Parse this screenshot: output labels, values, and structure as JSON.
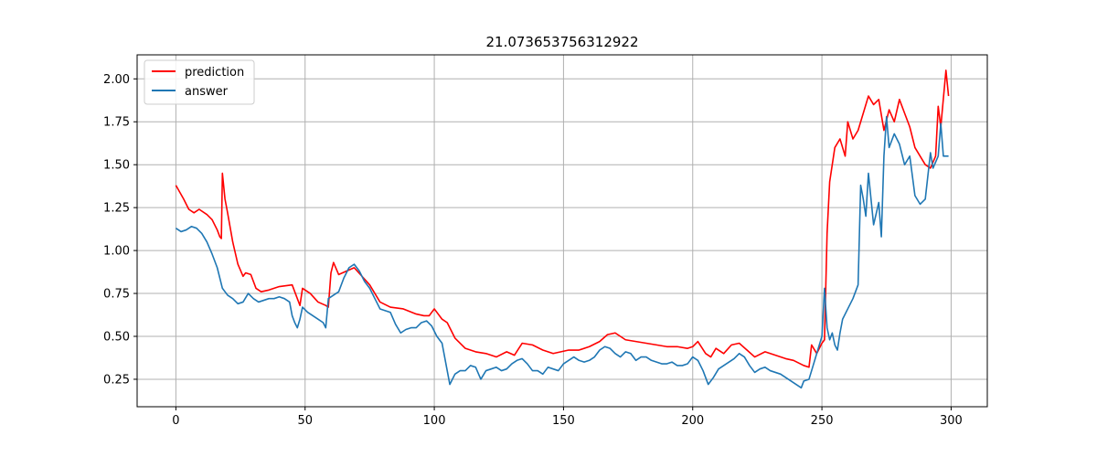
{
  "chart_data": {
    "type": "line",
    "title": "21.073653756312922",
    "xlabel": "",
    "ylabel": "",
    "xlim": [
      -15,
      314
    ],
    "ylim": [
      0.09,
      2.14
    ],
    "xticks": [
      0,
      50,
      100,
      150,
      200,
      250,
      300
    ],
    "yticks": [
      0.25,
      0.5,
      0.75,
      1.0,
      1.25,
      1.5,
      1.75,
      2.0
    ],
    "xtick_labels": [
      "0",
      "50",
      "100",
      "150",
      "200",
      "250",
      "300"
    ],
    "ytick_labels": [
      "0.25",
      "0.50",
      "0.75",
      "1.00",
      "1.25",
      "1.50",
      "1.75",
      "2.00"
    ],
    "grid": true,
    "legend_position": "top-left",
    "series": [
      {
        "name": "prediction",
        "color": "#ff0000",
        "points": [
          [
            0,
            1.38
          ],
          [
            3,
            1.3
          ],
          [
            5,
            1.24
          ],
          [
            7,
            1.22
          ],
          [
            9,
            1.24
          ],
          [
            12,
            1.21
          ],
          [
            14,
            1.18
          ],
          [
            16,
            1.12
          ],
          [
            17,
            1.08
          ],
          [
            17.6,
            1.07
          ],
          [
            18,
            1.45
          ],
          [
            19,
            1.3
          ],
          [
            20,
            1.22
          ],
          [
            22,
            1.05
          ],
          [
            24,
            0.92
          ],
          [
            26,
            0.85
          ],
          [
            27,
            0.87
          ],
          [
            29,
            0.86
          ],
          [
            31,
            0.78
          ],
          [
            33,
            0.76
          ],
          [
            36,
            0.77
          ],
          [
            40,
            0.79
          ],
          [
            45,
            0.8
          ],
          [
            47,
            0.72
          ],
          [
            48,
            0.68
          ],
          [
            49,
            0.78
          ],
          [
            52,
            0.75
          ],
          [
            55,
            0.7
          ],
          [
            58,
            0.68
          ],
          [
            59,
            0.67
          ],
          [
            60,
            0.87
          ],
          [
            61,
            0.93
          ],
          [
            63,
            0.86
          ],
          [
            66,
            0.88
          ],
          [
            69,
            0.9
          ],
          [
            72,
            0.85
          ],
          [
            75,
            0.8
          ],
          [
            79,
            0.7
          ],
          [
            83,
            0.67
          ],
          [
            88,
            0.66
          ],
          [
            93,
            0.63
          ],
          [
            96,
            0.62
          ],
          [
            98,
            0.62
          ],
          [
            100,
            0.66
          ],
          [
            103,
            0.6
          ],
          [
            105,
            0.58
          ],
          [
            108,
            0.49
          ],
          [
            112,
            0.43
          ],
          [
            116,
            0.41
          ],
          [
            120,
            0.4
          ],
          [
            124,
            0.38
          ],
          [
            128,
            0.41
          ],
          [
            131,
            0.39
          ],
          [
            134,
            0.46
          ],
          [
            138,
            0.45
          ],
          [
            142,
            0.42
          ],
          [
            146,
            0.4
          ],
          [
            149,
            0.41
          ],
          [
            152,
            0.42
          ],
          [
            156,
            0.42
          ],
          [
            160,
            0.44
          ],
          [
            164,
            0.47
          ],
          [
            167,
            0.51
          ],
          [
            170,
            0.52
          ],
          [
            174,
            0.48
          ],
          [
            178,
            0.47
          ],
          [
            182,
            0.46
          ],
          [
            186,
            0.45
          ],
          [
            190,
            0.44
          ],
          [
            194,
            0.44
          ],
          [
            198,
            0.43
          ],
          [
            200,
            0.44
          ],
          [
            202,
            0.47
          ],
          [
            205,
            0.4
          ],
          [
            207,
            0.38
          ],
          [
            209,
            0.43
          ],
          [
            212,
            0.4
          ],
          [
            215,
            0.45
          ],
          [
            218,
            0.46
          ],
          [
            221,
            0.42
          ],
          [
            224,
            0.38
          ],
          [
            228,
            0.41
          ],
          [
            232,
            0.39
          ],
          [
            236,
            0.37
          ],
          [
            239,
            0.36
          ],
          [
            243,
            0.33
          ],
          [
            245,
            0.32
          ],
          [
            246,
            0.45
          ],
          [
            248,
            0.4
          ],
          [
            250,
            0.46
          ],
          [
            251,
            0.48
          ],
          [
            252,
            1.1
          ],
          [
            253,
            1.4
          ],
          [
            255,
            1.6
          ],
          [
            257,
            1.65
          ],
          [
            259,
            1.55
          ],
          [
            260,
            1.75
          ],
          [
            262,
            1.65
          ],
          [
            264,
            1.7
          ],
          [
            266,
            1.8
          ],
          [
            268,
            1.9
          ],
          [
            270,
            1.85
          ],
          [
            272,
            1.88
          ],
          [
            274,
            1.7
          ],
          [
            276,
            1.82
          ],
          [
            278,
            1.75
          ],
          [
            280,
            1.88
          ],
          [
            282,
            1.8
          ],
          [
            284,
            1.72
          ],
          [
            286,
            1.6
          ],
          [
            288,
            1.55
          ],
          [
            290,
            1.5
          ],
          [
            292,
            1.48
          ],
          [
            294,
            1.55
          ],
          [
            295,
            1.84
          ],
          [
            296,
            1.72
          ],
          [
            298,
            2.05
          ],
          [
            299,
            1.9
          ]
        ]
      },
      {
        "name": "answer",
        "color": "#1f77b4",
        "points": [
          [
            0,
            1.13
          ],
          [
            2,
            1.11
          ],
          [
            4,
            1.12
          ],
          [
            6,
            1.14
          ],
          [
            8,
            1.13
          ],
          [
            10,
            1.1
          ],
          [
            12,
            1.05
          ],
          [
            14,
            0.98
          ],
          [
            16,
            0.9
          ],
          [
            18,
            0.78
          ],
          [
            20,
            0.74
          ],
          [
            22,
            0.72
          ],
          [
            24,
            0.69
          ],
          [
            26,
            0.7
          ],
          [
            28,
            0.75
          ],
          [
            30,
            0.72
          ],
          [
            32,
            0.7
          ],
          [
            34,
            0.71
          ],
          [
            36,
            0.72
          ],
          [
            38,
            0.72
          ],
          [
            40,
            0.73
          ],
          [
            42,
            0.72
          ],
          [
            44,
            0.7
          ],
          [
            45,
            0.62
          ],
          [
            46,
            0.58
          ],
          [
            47,
            0.55
          ],
          [
            48,
            0.6
          ],
          [
            49,
            0.67
          ],
          [
            51,
            0.64
          ],
          [
            53,
            0.62
          ],
          [
            55,
            0.6
          ],
          [
            57,
            0.58
          ],
          [
            58,
            0.55
          ],
          [
            59,
            0.72
          ],
          [
            61,
            0.74
          ],
          [
            63,
            0.76
          ],
          [
            65,
            0.84
          ],
          [
            67,
            0.9
          ],
          [
            69,
            0.92
          ],
          [
            71,
            0.88
          ],
          [
            73,
            0.82
          ],
          [
            75,
            0.78
          ],
          [
            77,
            0.72
          ],
          [
            79,
            0.66
          ],
          [
            81,
            0.65
          ],
          [
            83,
            0.64
          ],
          [
            85,
            0.57
          ],
          [
            87,
            0.52
          ],
          [
            89,
            0.54
          ],
          [
            91,
            0.55
          ],
          [
            93,
            0.55
          ],
          [
            95,
            0.58
          ],
          [
            97,
            0.59
          ],
          [
            99,
            0.56
          ],
          [
            101,
            0.5
          ],
          [
            103,
            0.46
          ],
          [
            105,
            0.3
          ],
          [
            106,
            0.22
          ],
          [
            108,
            0.28
          ],
          [
            110,
            0.3
          ],
          [
            112,
            0.3
          ],
          [
            114,
            0.33
          ],
          [
            116,
            0.32
          ],
          [
            118,
            0.25
          ],
          [
            120,
            0.3
          ],
          [
            122,
            0.31
          ],
          [
            124,
            0.32
          ],
          [
            126,
            0.3
          ],
          [
            128,
            0.31
          ],
          [
            130,
            0.34
          ],
          [
            132,
            0.36
          ],
          [
            134,
            0.37
          ],
          [
            136,
            0.34
          ],
          [
            138,
            0.3
          ],
          [
            140,
            0.3
          ],
          [
            142,
            0.28
          ],
          [
            144,
            0.32
          ],
          [
            146,
            0.31
          ],
          [
            148,
            0.3
          ],
          [
            150,
            0.34
          ],
          [
            152,
            0.36
          ],
          [
            154,
            0.38
          ],
          [
            156,
            0.36
          ],
          [
            158,
            0.35
          ],
          [
            160,
            0.36
          ],
          [
            162,
            0.38
          ],
          [
            164,
            0.42
          ],
          [
            166,
            0.44
          ],
          [
            168,
            0.43
          ],
          [
            170,
            0.4
          ],
          [
            172,
            0.38
          ],
          [
            174,
            0.41
          ],
          [
            176,
            0.4
          ],
          [
            178,
            0.36
          ],
          [
            180,
            0.38
          ],
          [
            182,
            0.38
          ],
          [
            184,
            0.36
          ],
          [
            186,
            0.35
          ],
          [
            188,
            0.34
          ],
          [
            190,
            0.34
          ],
          [
            192,
            0.35
          ],
          [
            194,
            0.33
          ],
          [
            196,
            0.33
          ],
          [
            198,
            0.34
          ],
          [
            200,
            0.38
          ],
          [
            202,
            0.36
          ],
          [
            204,
            0.3
          ],
          [
            206,
            0.22
          ],
          [
            208,
            0.26
          ],
          [
            210,
            0.31
          ],
          [
            212,
            0.33
          ],
          [
            214,
            0.35
          ],
          [
            216,
            0.37
          ],
          [
            218,
            0.4
          ],
          [
            220,
            0.38
          ],
          [
            222,
            0.33
          ],
          [
            224,
            0.29
          ],
          [
            226,
            0.31
          ],
          [
            228,
            0.32
          ],
          [
            230,
            0.3
          ],
          [
            232,
            0.29
          ],
          [
            234,
            0.28
          ],
          [
            236,
            0.26
          ],
          [
            238,
            0.24
          ],
          [
            240,
            0.22
          ],
          [
            242,
            0.2
          ],
          [
            243,
            0.24
          ],
          [
            245,
            0.25
          ],
          [
            247,
            0.35
          ],
          [
            249,
            0.45
          ],
          [
            250,
            0.5
          ],
          [
            251,
            0.78
          ],
          [
            252,
            0.55
          ],
          [
            253,
            0.48
          ],
          [
            254,
            0.52
          ],
          [
            255,
            0.45
          ],
          [
            256,
            0.42
          ],
          [
            257,
            0.52
          ],
          [
            258,
            0.6
          ],
          [
            260,
            0.66
          ],
          [
            262,
            0.72
          ],
          [
            264,
            0.8
          ],
          [
            265,
            1.38
          ],
          [
            266,
            1.3
          ],
          [
            267,
            1.2
          ],
          [
            268,
            1.45
          ],
          [
            270,
            1.15
          ],
          [
            272,
            1.28
          ],
          [
            273,
            1.08
          ],
          [
            274,
            1.55
          ],
          [
            275,
            1.78
          ],
          [
            276,
            1.6
          ],
          [
            278,
            1.68
          ],
          [
            280,
            1.62
          ],
          [
            282,
            1.5
          ],
          [
            284,
            1.55
          ],
          [
            286,
            1.32
          ],
          [
            288,
            1.27
          ],
          [
            290,
            1.3
          ],
          [
            292,
            1.57
          ],
          [
            293,
            1.48
          ],
          [
            295,
            1.55
          ],
          [
            296,
            1.74
          ],
          [
            297,
            1.55
          ],
          [
            299,
            1.55
          ]
        ]
      }
    ]
  }
}
